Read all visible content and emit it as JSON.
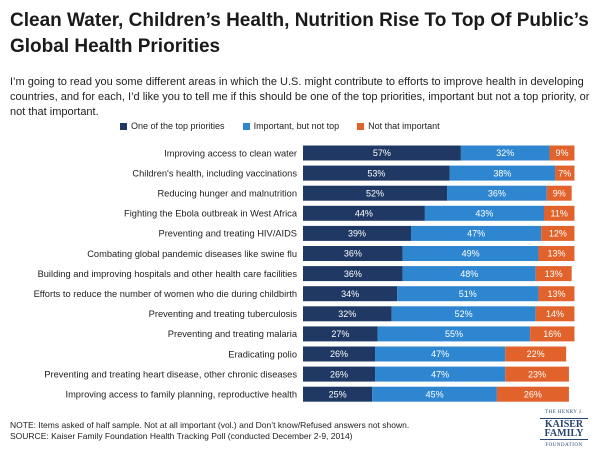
{
  "colors": {
    "top_priority": "#1f3864",
    "important_not_top": "#2e86d1",
    "not_that_important": "#e2622b",
    "logo": "#26456e"
  },
  "logo": {
    "line1": "THE HENRY J.",
    "line2": "KAISER",
    "line3": "FAMILY",
    "line4": "FOUNDATION"
  },
  "chart_data": {
    "type": "bar",
    "orientation": "horizontal",
    "stacked": true,
    "title": "Clean Water, Children’s Health, Nutrition Rise To Top Of Public’s Global Health Priorities",
    "subtitle": "I’m going to read you some different areas in which the U.S. might contribute to efforts to improve health in developing countries, and for each, I’d like you to tell me if this should be one of the top priorities, important but not a top priority, or not that important.",
    "legend": [
      "One of the top priorities",
      "Important, but not top",
      "Not that important"
    ],
    "categories": [
      "Improving access to clean water",
      "Children's health, including vaccinations",
      "Reducing hunger and malnutrition",
      "Fighting the Ebola outbreak in West Africa",
      "Preventing and treating HIV/AIDS",
      "Combating global pandemic diseases like swine flu",
      "Building and improving hospitals and other health care facilities",
      "Efforts to reduce the number of women who die during childbirth",
      "Preventing and treating tuberculosis",
      "Preventing and treating malaria",
      "Eradicating polio",
      "Preventing and treating heart disease, other chronic diseases",
      "Improving access to family planning, reproductive health"
    ],
    "series": [
      {
        "name": "One of the top priorities",
        "values": [
          57,
          53,
          52,
          44,
          39,
          36,
          36,
          34,
          32,
          27,
          26,
          26,
          25
        ]
      },
      {
        "name": "Important, but not top",
        "values": [
          32,
          38,
          36,
          43,
          47,
          49,
          48,
          51,
          52,
          55,
          47,
          47,
          45
        ]
      },
      {
        "name": "Not that important",
        "values": [
          9,
          7,
          9,
          11,
          12,
          13,
          13,
          13,
          14,
          16,
          22,
          23,
          26
        ]
      }
    ],
    "value_suffix": "%",
    "xlim": [
      0,
      100
    ],
    "note": "NOTE: Items asked of half sample. Not at all important (vol.) and Don’t know/Refused answers not shown.",
    "source": "SOURCE: Kaiser Family Foundation Health Tracking Poll (conducted December 2-9, 2014)"
  }
}
